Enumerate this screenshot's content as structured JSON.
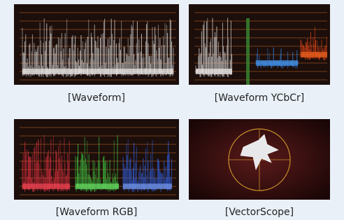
{
  "panels": [
    {
      "caption": "[Waveform]"
    },
    {
      "caption": "[Waveform YCbCr]"
    },
    {
      "caption": "[Waveform RGB]"
    },
    {
      "caption": "[VectorScope]"
    }
  ]
}
